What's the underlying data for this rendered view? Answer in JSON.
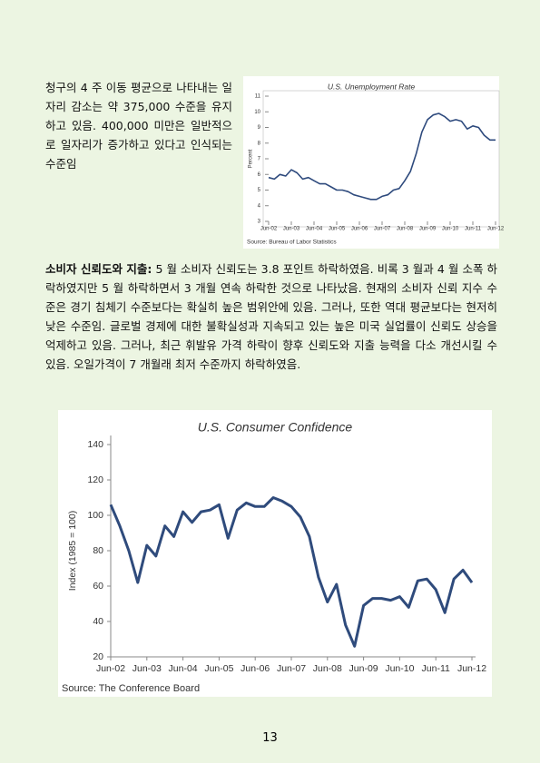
{
  "paragraphs": [
    {
      "text": "청구의 4 주 이동 평균으로 나타내는 일자리 감소는 약 375,000 수준을 유지하고 있음. 400,000 미만은 일반적으로 일자리가 증가하고 있다고 인식되는 수준임"
    },
    {
      "lead": "소비자 신뢰도와 지출:",
      "text": "5 월 소비자 신뢰도는 3.8 포인트 하락하였음. 비록 3 월과 4 월 소폭 하락하였지만 5 월 하락하면서 3 개월 연속 하락한 것으로 나타났음. 현재의 소비자 신뢰 지수 수준은 경기 침체기 수준보다는 확실히 높은 범위안에 있음. 그러나, 또한 역대 평균보다는 현저히 낮은 수준임. 글로벌 경제에 대한 불확실성과 지속되고 있는 높은 미국 실업률이 신뢰도 상승을 억제하고 있음. 그러나, 최근 휘발유 가격 하락이 향후 신뢰도와 지출 능력을 다소 개선시킬 수 있음. 오일가격이 7 개월래 최저 수준까지 하락하였음."
    }
  ],
  "page_number": "13",
  "chart_data": [
    {
      "type": "line",
      "title": "U.S. Unemployment Rate",
      "y_label": "Percent",
      "source": "Source:  Bureau of Labor Statistics",
      "color": "#2e4a7d",
      "categories": [
        "Jun-02",
        null,
        null,
        null,
        "Jun-03",
        null,
        null,
        null,
        "Jun-04",
        null,
        null,
        null,
        "Jun-05",
        null,
        null,
        null,
        "Jun-06",
        null,
        null,
        null,
        "Jun-07",
        null,
        null,
        null,
        "Jun-08",
        null,
        null,
        null,
        "Jun-09",
        null,
        null,
        null,
        "Jun-10",
        null,
        null,
        null,
        "Jun-11",
        null,
        null,
        null,
        "Jun-12"
      ],
      "values": [
        5.8,
        5.7,
        6.0,
        5.9,
        6.3,
        6.1,
        5.7,
        5.8,
        5.6,
        5.4,
        5.4,
        5.2,
        5.0,
        5.0,
        4.9,
        4.7,
        4.6,
        4.5,
        4.4,
        4.4,
        4.6,
        4.7,
        5.0,
        5.1,
        5.6,
        6.2,
        7.3,
        8.7,
        9.5,
        9.8,
        9.9,
        9.7,
        9.4,
        9.5,
        9.4,
        8.9,
        9.1,
        9.0,
        8.5,
        8.2,
        8.2
      ],
      "ylim": [
        3,
        11
      ],
      "yticks": [
        3,
        4,
        5,
        6,
        7,
        8,
        9,
        10,
        11
      ]
    },
    {
      "type": "line",
      "title": "U.S. Consumer Confidence",
      "y_label": "Index (1985 = 100)",
      "source": "Source:  The Conference Board",
      "color": "#2f4b7c",
      "categories": [
        "Jun-02",
        null,
        null,
        null,
        "Jun-03",
        null,
        null,
        null,
        "Jun-04",
        null,
        null,
        null,
        "Jun-05",
        null,
        null,
        null,
        "Jun-06",
        null,
        null,
        null,
        "Jun-07",
        null,
        null,
        null,
        "Jun-08",
        null,
        null,
        null,
        "Jun-09",
        null,
        null,
        null,
        "Jun-10",
        null,
        null,
        null,
        "Jun-11",
        null,
        null,
        null,
        "Jun-12"
      ],
      "values": [
        106,
        94,
        80,
        62,
        83,
        77,
        94,
        88,
        102,
        96,
        102,
        103,
        106,
        87,
        103,
        107,
        105,
        105,
        110,
        108,
        105,
        99,
        88,
        65,
        51,
        61,
        38,
        26,
        49,
        53,
        53,
        52,
        54,
        48,
        63,
        64,
        58,
        45,
        64,
        69,
        62
      ],
      "ylim": [
        20,
        140
      ],
      "yticks": [
        20,
        40,
        60,
        80,
        100,
        120,
        140
      ]
    }
  ]
}
